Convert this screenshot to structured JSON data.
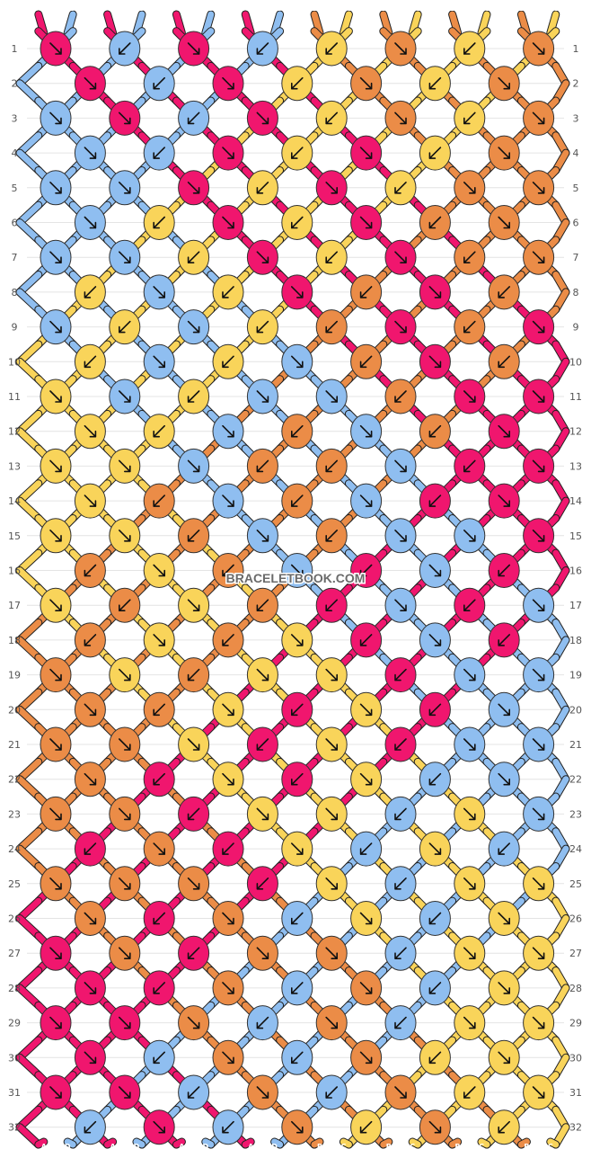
{
  "colors": {
    "A": "#f0166e",
    "D": "#8fbef0",
    "B": "#eb8c47",
    "C": "#f9d45a"
  },
  "top_threads": [
    "A",
    "D",
    "A",
    "D",
    "A",
    "D",
    "A",
    "D",
    "B",
    "C",
    "B",
    "C",
    "B",
    "C",
    "B",
    "C"
  ],
  "bottom_threads": [
    "A",
    "D",
    "A",
    "D",
    "A",
    "D",
    "A",
    "D",
    "B",
    "C",
    "B",
    "C",
    "B",
    "C",
    "B",
    "C"
  ],
  "row_numbers": [
    "1",
    "2",
    "3",
    "4",
    "5",
    "6",
    "7",
    "8",
    "9",
    "10",
    "11",
    "12",
    "13",
    "14",
    "15",
    "16",
    "17",
    "18",
    "19",
    "20",
    "21",
    "22",
    "23",
    "24",
    "25",
    "26",
    "27",
    "28",
    "29",
    "30",
    "31",
    "32"
  ],
  "watermark": "BRACELETBOOK.COM",
  "knot_arrows": [
    [
      "f",
      "b",
      "f",
      "b",
      "b",
      "f",
      "b",
      "f"
    ],
    [
      "f",
      "b",
      "f",
      "b",
      "f",
      "b",
      "f"
    ],
    [
      "f",
      "f",
      "b",
      "f",
      "b",
      "f",
      "b",
      "f"
    ],
    [
      "f",
      "b",
      "f",
      "b",
      "f",
      "b",
      "f"
    ],
    [
      "f",
      "f",
      "f",
      "b",
      "f",
      "b",
      "f",
      "f"
    ],
    [
      "f",
      "b",
      "f",
      "b",
      "f",
      "b",
      "f"
    ],
    [
      "f",
      "f",
      "b",
      "f",
      "b",
      "f",
      "b",
      "f"
    ],
    [
      "b",
      "f",
      "b",
      "f",
      "b",
      "f",
      "b"
    ],
    [
      "f",
      "b",
      "f",
      "b",
      "b",
      "f",
      "b",
      "f"
    ],
    [
      "b",
      "f",
      "b",
      "f",
      "b",
      "f",
      "b"
    ],
    [
      "f",
      "f",
      "b",
      "f",
      "f",
      "b",
      "f",
      "f"
    ],
    [
      "f",
      "b",
      "f",
      "b",
      "f",
      "b",
      "f"
    ],
    [
      "f",
      "f",
      "f",
      "b",
      "b",
      "f",
      "b",
      "f"
    ],
    [
      "f",
      "b",
      "f",
      "b",
      "f",
      "b",
      "f"
    ],
    [
      "f",
      "f",
      "b",
      "f",
      "b",
      "f",
      "f",
      "f"
    ],
    [
      "b",
      "f",
      "b",
      "f",
      "b",
      "f",
      "b"
    ],
    [
      "f",
      "b",
      "f",
      "b",
      "b",
      "f",
      "b",
      "f"
    ],
    [
      "b",
      "f",
      "b",
      "f",
      "b",
      "f",
      "b"
    ],
    [
      "f",
      "f",
      "b",
      "f",
      "f",
      "b",
      "f",
      "f"
    ],
    [
      "f",
      "b",
      "f",
      "b",
      "f",
      "b",
      "f"
    ],
    [
      "f",
      "f",
      "f",
      "b",
      "f",
      "b",
      "f",
      "f"
    ],
    [
      "f",
      "b",
      "f",
      "b",
      "f",
      "b",
      "f"
    ],
    [
      "f",
      "f",
      "b",
      "f",
      "f",
      "b",
      "f",
      "f"
    ],
    [
      "b",
      "f",
      "b",
      "f",
      "b",
      "f",
      "b"
    ],
    [
      "f",
      "f",
      "f",
      "b",
      "f",
      "b",
      "f",
      "f"
    ],
    [
      "f",
      "b",
      "f",
      "b",
      "f",
      "b",
      "f"
    ],
    [
      "f",
      "f",
      "b",
      "f",
      "f",
      "b",
      "f",
      "f"
    ],
    [
      "f",
      "b",
      "f",
      "b",
      "f",
      "b",
      "f"
    ],
    [
      "f",
      "f",
      "f",
      "b",
      "f",
      "b",
      "f",
      "f"
    ],
    [
      "f",
      "b",
      "f",
      "b",
      "f",
      "b",
      "f"
    ],
    [
      "f",
      "f",
      "b",
      "f",
      "b",
      "f",
      "b",
      "f"
    ],
    [
      "b",
      "f",
      "b",
      "f",
      "b",
      "f",
      "b"
    ]
  ]
}
